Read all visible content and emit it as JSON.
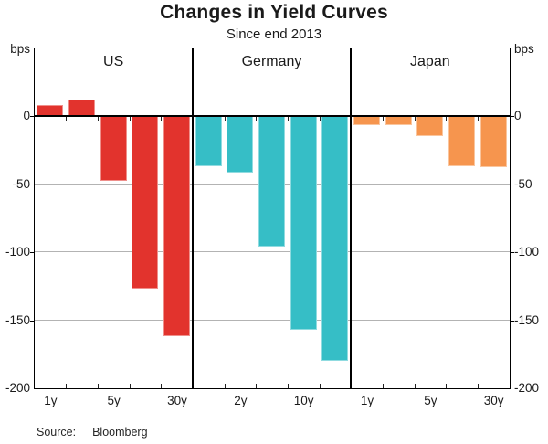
{
  "title": "Changes in Yield Curves",
  "subtitle": "Since end 2013",
  "source_label": "Source:",
  "source_value": "Bloomberg",
  "axis_unit": "bps",
  "chart_data": {
    "type": "bar",
    "title": "Changes in Yield Curves",
    "subtitle": "Since end 2013",
    "ylabel": "bps",
    "ylim": [
      -200,
      50
    ],
    "yticks": [
      0,
      -50,
      -100,
      -150,
      -200
    ],
    "grid": true,
    "categories": [
      "1y",
      "2y",
      "5y",
      "10y",
      "30y"
    ],
    "panels": [
      {
        "name": "US",
        "color": "#e2332d",
        "values": [
          8,
          12,
          -48,
          -127,
          -162
        ],
        "label_indices": [
          0,
          2,
          4
        ]
      },
      {
        "name": "Germany",
        "color": "#36bec6",
        "values": [
          -37,
          -42,
          -96,
          -157,
          -180
        ],
        "label_indices": [
          1,
          3
        ]
      },
      {
        "name": "Japan",
        "color": "#f6954e",
        "values": [
          -7,
          -7,
          -15,
          -37,
          -38
        ],
        "label_indices": [
          0,
          2,
          4
        ]
      }
    ],
    "source": "Bloomberg",
    "colors": {
      "grid": "#b3b3b3",
      "axis": "#000000"
    }
  }
}
